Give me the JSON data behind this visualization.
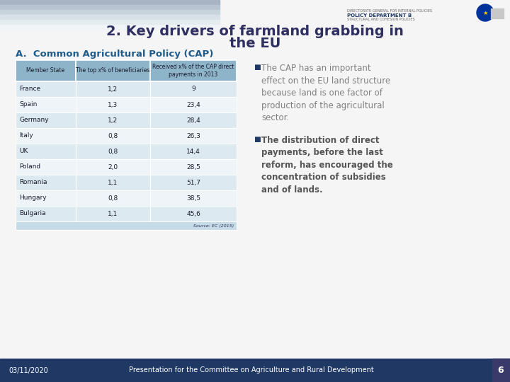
{
  "title_line1": "2. Key drivers of farmland grabbing in",
  "title_line2": "the EU",
  "subtitle": "A.  Common Agricultural Policy (CAP)",
  "bg_color": "#f5f5f5",
  "title_color": "#2F3061",
  "subtitle_color": "#1F5C8B",
  "table_header_bg": "#8db4c8",
  "table_row_bg_odd": "#dce9f0",
  "table_row_bg_even": "#eef4f8",
  "table_footer_bg": "#c5dce8",
  "table_border_color": "#ffffff",
  "col_headers": [
    "Member State",
    "The top x% of beneficiaries",
    "Received x% of the CAP direct\npayments in 2013"
  ],
  "rows": [
    [
      "France",
      "1,2",
      "9"
    ],
    [
      "Spain",
      "1,3",
      "23,4"
    ],
    [
      "Germany",
      "1,2",
      "28,4"
    ],
    [
      "Italy",
      "0,8",
      "26,3"
    ],
    [
      "UK",
      "0,8",
      "14,4"
    ],
    [
      "Poland",
      "2,0",
      "28,5"
    ],
    [
      "Romania",
      "1,1",
      "51,7"
    ],
    [
      "Hungary",
      "0,8",
      "38,5"
    ],
    [
      "Bulgaria",
      "1,1",
      "45,6"
    ]
  ],
  "source_text": "Source: EC (2015)",
  "bullet1_text": "The CAP has an important\neffect on the EU land structure\nbecause land is one factor of\nproduction of the agricultural\nsector.",
  "bullet2_text": "The distribution of direct\npayments, before the last\nreform, has encouraged the\nconcentration of subsidies\nand of lands.",
  "bullet1_color": "#808080",
  "bullet2_color": "#555555",
  "bullet_marker_color": "#1F3864",
  "footer_bg": "#1F3864",
  "footer_text_left": "03/11/2020",
  "footer_text_center": "Presentation for the Committee on Agriculture and Rural Development",
  "footer_page": "6",
  "footer_text_color": "#ffffff",
  "stripe_colors": [
    "#a8b4c4",
    "#b8c4d0",
    "#c8d4dc",
    "#d8e0e8",
    "#e4ecf0",
    "#f0f4f6"
  ],
  "logo_line1": "DIRECTORATE-GENERAL FOR INTERNAL POLICIES",
  "logo_line2": "POLICY DEPARTMENT B",
  "logo_line3": "STRUCTURAL AND COHESION POLICIES"
}
